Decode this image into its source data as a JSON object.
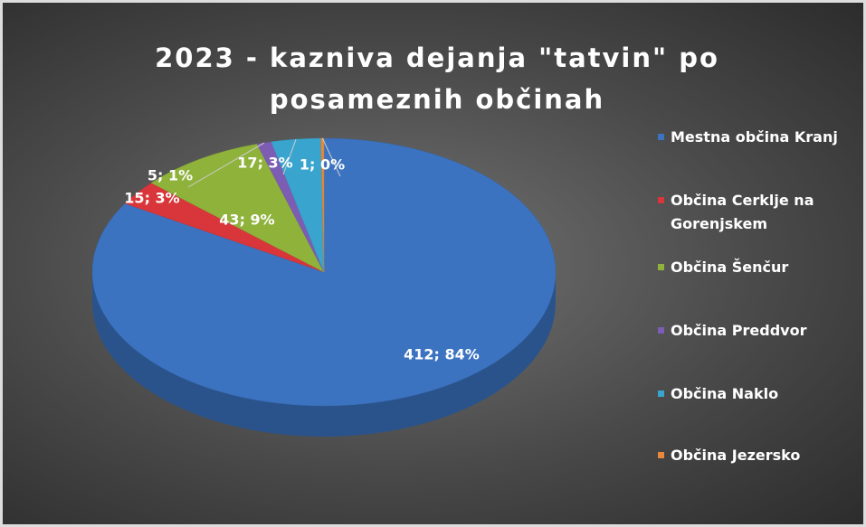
{
  "chart_data": {
    "type": "pie",
    "title": "2023 - kazniva dejanja \"tatvin\" po posameznih občinah",
    "categories": [
      "Mestna občina Kranj",
      "Občina Cerklje na Gorenjskem",
      "Občina Šenčur",
      "Občina Preddvor",
      "Občina Naklo",
      "Občina Jezersko"
    ],
    "values": [
      412,
      15,
      43,
      5,
      17,
      1
    ],
    "value_labels": [
      "412; 84%",
      "15; 3%",
      "43; 9%",
      "5; 1%",
      "17; 3%",
      "1; 0%"
    ],
    "colors": [
      "#3b73c1",
      "#d8363b",
      "#8fb23b",
      "#7d5db3",
      "#39a5cf",
      "#e8883a"
    ],
    "legend": "right"
  }
}
